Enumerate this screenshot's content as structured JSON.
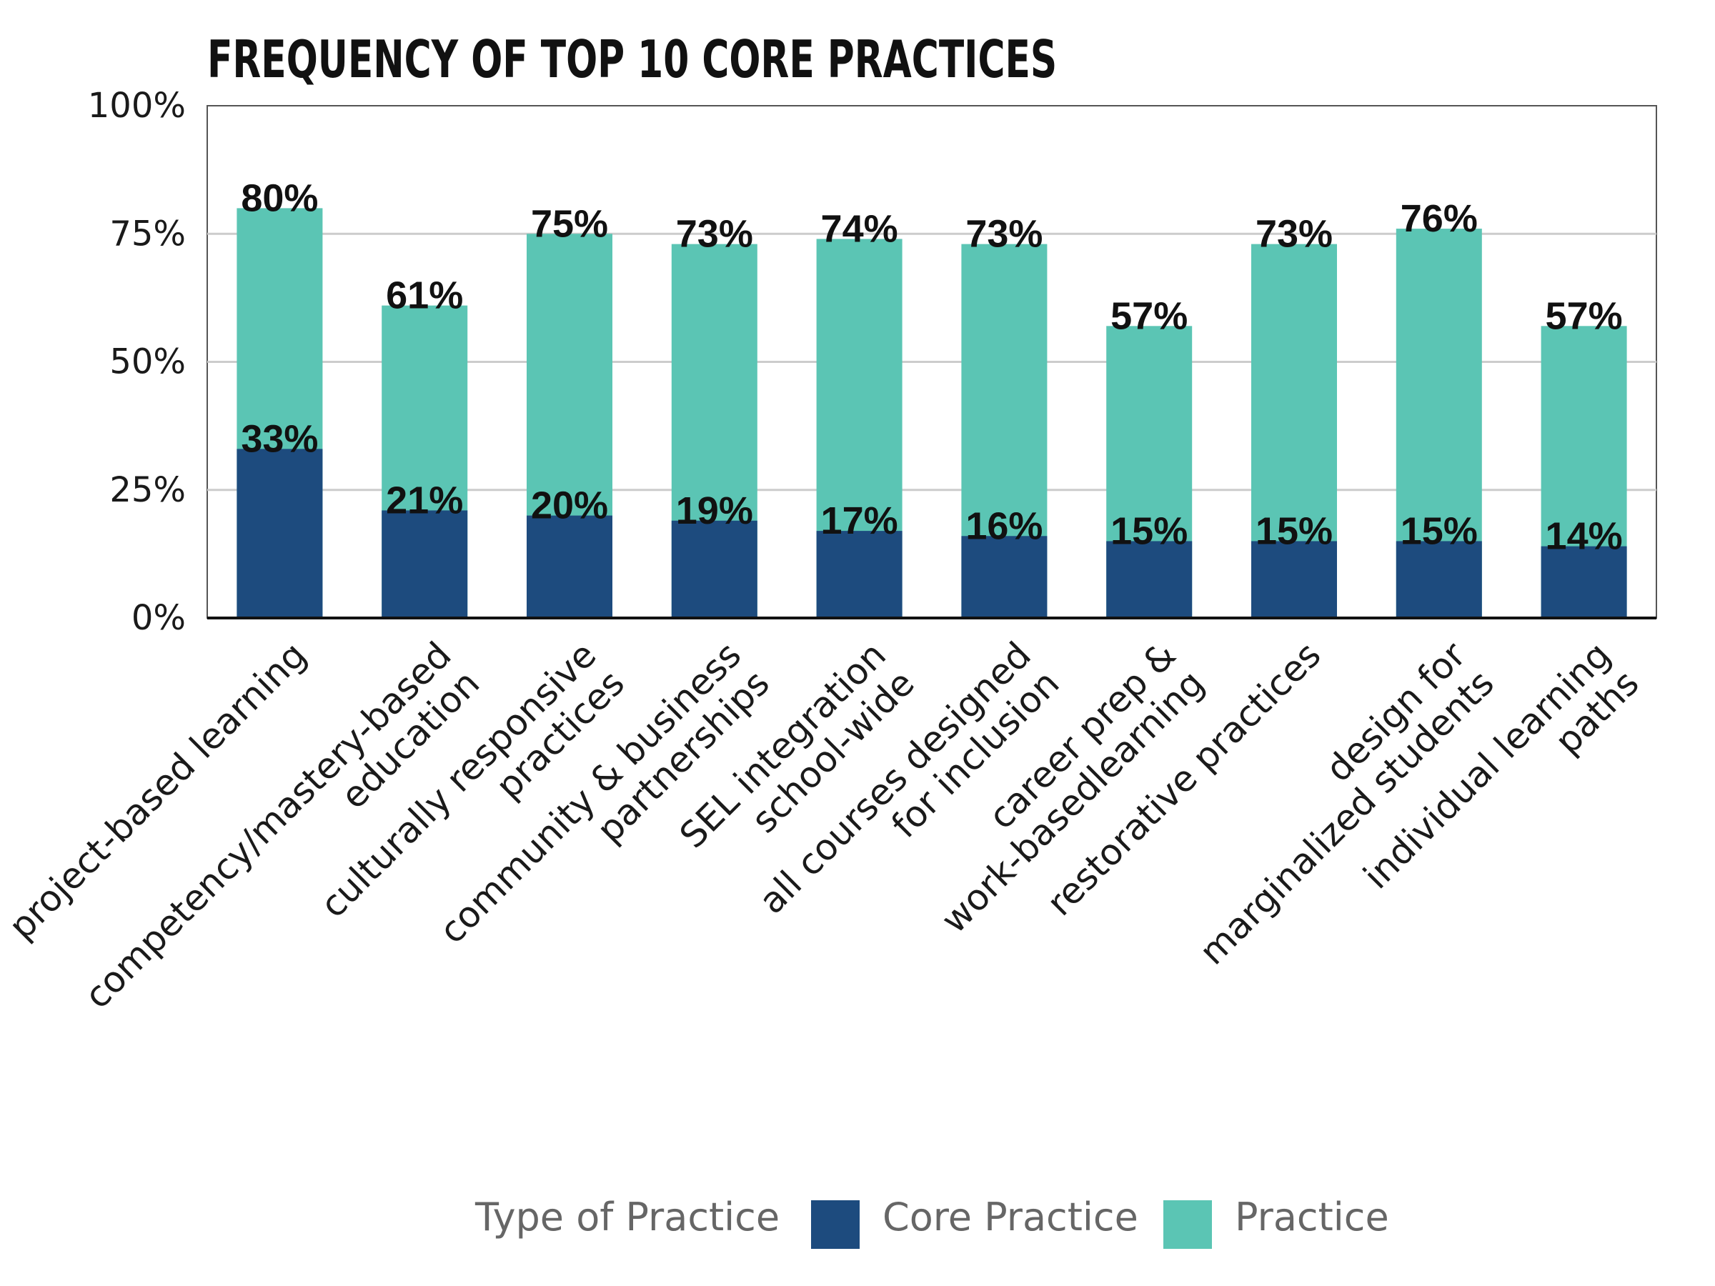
{
  "chart_data": {
    "type": "bar",
    "stacked": false,
    "title": "FREQUENCY OF TOP 10 CORE PRACTICES",
    "categories": [
      [
        "project-based learning"
      ],
      [
        "competency/mastery-based",
        "education"
      ],
      [
        "culturally responsive",
        "practices"
      ],
      [
        "community & business",
        "partnerships"
      ],
      [
        "SEL integration",
        "school-wide"
      ],
      [
        "all courses designed",
        "for inclusion"
      ],
      [
        "career prep &",
        "work-basedlearning"
      ],
      [
        "restorative practices"
      ],
      [
        "design for",
        "marginalized students"
      ],
      [
        "individual learning",
        "paths"
      ]
    ],
    "series": [
      {
        "name": "Practice",
        "color": "#5bc5b4",
        "values": [
          80,
          61,
          75,
          73,
          74,
          73,
          57,
          73,
          76,
          57
        ],
        "labels": [
          "80%",
          "61%",
          "75%",
          "73%",
          "74%",
          "73%",
          "57%",
          "73%",
          "76%",
          "57%"
        ]
      },
      {
        "name": "Core Practice",
        "color": "#1d4b7e",
        "values": [
          33,
          21,
          20,
          19,
          17,
          16,
          15,
          15,
          15,
          14
        ],
        "labels": [
          "33%",
          "21%",
          "20%",
          "19%",
          "17%",
          "16%",
          "15%",
          "15%",
          "15%",
          "14%"
        ]
      }
    ],
    "y_ticks": [
      {
        "value": 0,
        "label": "0%"
      },
      {
        "value": 25,
        "label": "25%"
      },
      {
        "value": 50,
        "label": "50%"
      },
      {
        "value": 75,
        "label": "75%"
      },
      {
        "value": 100,
        "label": "100%"
      }
    ],
    "ylim": [
      0,
      100
    ],
    "grid": true,
    "legend": {
      "title": "Type of Practice",
      "placement": "bottom",
      "items": [
        {
          "name": "Core Practice",
          "color": "#1d4b7e"
        },
        {
          "name": "Practice",
          "color": "#5bc5b4"
        }
      ]
    }
  }
}
